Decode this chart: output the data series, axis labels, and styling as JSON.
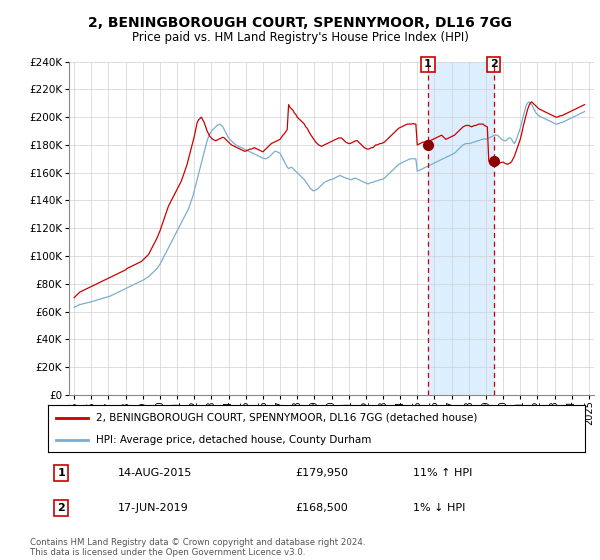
{
  "title": "2, BENINGBOROUGH COURT, SPENNYMOOR, DL16 7GG",
  "subtitle": "Price paid vs. HM Land Registry's House Price Index (HPI)",
  "legend_line1": "2, BENINGBOROUGH COURT, SPENNYMOOR, DL16 7GG (detached house)",
  "legend_line2": "HPI: Average price, detached house, County Durham",
  "annotation1_label": "1",
  "annotation1_date": "14-AUG-2015",
  "annotation1_price": "£179,950",
  "annotation1_hpi": "11% ↑ HPI",
  "annotation2_label": "2",
  "annotation2_date": "17-JUN-2019",
  "annotation2_price": "£168,500",
  "annotation2_hpi": "1% ↓ HPI",
  "footer": "Contains HM Land Registry data © Crown copyright and database right 2024.\nThis data is licensed under the Open Government Licence v3.0.",
  "red_color": "#cc0000",
  "blue_color": "#7aadcf",
  "shade_color": "#ddeeff",
  "vline1_x": 2015.62,
  "vline2_x": 2019.46,
  "sale1_price": 179950,
  "sale2_price": 168500,
  "ylim": [
    0,
    240000
  ],
  "xlim_start": 1994.7,
  "xlim_end": 2025.3,
  "hpi_months": [
    1995.0,
    1995.083,
    1995.167,
    1995.25,
    1995.333,
    1995.417,
    1995.5,
    1995.583,
    1995.667,
    1995.75,
    1995.833,
    1995.917,
    1996.0,
    1996.083,
    1996.167,
    1996.25,
    1996.333,
    1996.417,
    1996.5,
    1996.583,
    1996.667,
    1996.75,
    1996.833,
    1996.917,
    1997.0,
    1997.083,
    1997.167,
    1997.25,
    1997.333,
    1997.417,
    1997.5,
    1997.583,
    1997.667,
    1997.75,
    1997.833,
    1997.917,
    1998.0,
    1998.083,
    1998.167,
    1998.25,
    1998.333,
    1998.417,
    1998.5,
    1998.583,
    1998.667,
    1998.75,
    1998.833,
    1998.917,
    1999.0,
    1999.083,
    1999.167,
    1999.25,
    1999.333,
    1999.417,
    1999.5,
    1999.583,
    1999.667,
    1999.75,
    1999.833,
    1999.917,
    2000.0,
    2000.083,
    2000.167,
    2000.25,
    2000.333,
    2000.417,
    2000.5,
    2000.583,
    2000.667,
    2000.75,
    2000.833,
    2000.917,
    2001.0,
    2001.083,
    2001.167,
    2001.25,
    2001.333,
    2001.417,
    2001.5,
    2001.583,
    2001.667,
    2001.75,
    2001.833,
    2001.917,
    2002.0,
    2002.083,
    2002.167,
    2002.25,
    2002.333,
    2002.417,
    2002.5,
    2002.583,
    2002.667,
    2002.75,
    2002.833,
    2002.917,
    2003.0,
    2003.083,
    2003.167,
    2003.25,
    2003.333,
    2003.417,
    2003.5,
    2003.583,
    2003.667,
    2003.75,
    2003.833,
    2003.917,
    2004.0,
    2004.083,
    2004.167,
    2004.25,
    2004.333,
    2004.417,
    2004.5,
    2004.583,
    2004.667,
    2004.75,
    2004.833,
    2004.917,
    2005.0,
    2005.083,
    2005.167,
    2005.25,
    2005.333,
    2005.417,
    2005.5,
    2005.583,
    2005.667,
    2005.75,
    2005.833,
    2005.917,
    2006.0,
    2006.083,
    2006.167,
    2006.25,
    2006.333,
    2006.417,
    2006.5,
    2006.583,
    2006.667,
    2006.75,
    2006.833,
    2006.917,
    2007.0,
    2007.083,
    2007.167,
    2007.25,
    2007.333,
    2007.417,
    2007.5,
    2007.583,
    2007.667,
    2007.75,
    2007.833,
    2007.917,
    2008.0,
    2008.083,
    2008.167,
    2008.25,
    2008.333,
    2008.417,
    2008.5,
    2008.583,
    2008.667,
    2008.75,
    2008.833,
    2008.917,
    2009.0,
    2009.083,
    2009.167,
    2009.25,
    2009.333,
    2009.417,
    2009.5,
    2009.583,
    2009.667,
    2009.75,
    2009.833,
    2009.917,
    2010.0,
    2010.083,
    2010.167,
    2010.25,
    2010.333,
    2010.417,
    2010.5,
    2010.583,
    2010.667,
    2010.75,
    2010.833,
    2010.917,
    2011.0,
    2011.083,
    2011.167,
    2011.25,
    2011.333,
    2011.417,
    2011.5,
    2011.583,
    2011.667,
    2011.75,
    2011.833,
    2011.917,
    2012.0,
    2012.083,
    2012.167,
    2012.25,
    2012.333,
    2012.417,
    2012.5,
    2012.583,
    2012.667,
    2012.75,
    2012.833,
    2012.917,
    2013.0,
    2013.083,
    2013.167,
    2013.25,
    2013.333,
    2013.417,
    2013.5,
    2013.583,
    2013.667,
    2013.75,
    2013.833,
    2013.917,
    2014.0,
    2014.083,
    2014.167,
    2014.25,
    2014.333,
    2014.417,
    2014.5,
    2014.583,
    2014.667,
    2014.75,
    2014.833,
    2014.917,
    2015.0,
    2015.083,
    2015.167,
    2015.25,
    2015.333,
    2015.417,
    2015.5,
    2015.583,
    2015.667,
    2015.75,
    2015.833,
    2015.917,
    2016.0,
    2016.083,
    2016.167,
    2016.25,
    2016.333,
    2016.417,
    2016.5,
    2016.583,
    2016.667,
    2016.75,
    2016.833,
    2016.917,
    2017.0,
    2017.083,
    2017.167,
    2017.25,
    2017.333,
    2017.417,
    2017.5,
    2017.583,
    2017.667,
    2017.75,
    2017.833,
    2017.917,
    2018.0,
    2018.083,
    2018.167,
    2018.25,
    2018.333,
    2018.417,
    2018.5,
    2018.583,
    2018.667,
    2018.75,
    2018.833,
    2018.917,
    2019.0,
    2019.083,
    2019.167,
    2019.25,
    2019.333,
    2019.417,
    2019.5,
    2019.583,
    2019.667,
    2019.75,
    2019.833,
    2019.917,
    2020.0,
    2020.083,
    2020.167,
    2020.25,
    2020.333,
    2020.417,
    2020.5,
    2020.583,
    2020.667,
    2020.75,
    2020.833,
    2020.917,
    2021.0,
    2021.083,
    2021.167,
    2021.25,
    2021.333,
    2021.417,
    2021.5,
    2021.583,
    2021.667,
    2021.75,
    2021.833,
    2021.917,
    2022.0,
    2022.083,
    2022.167,
    2022.25,
    2022.333,
    2022.417,
    2022.5,
    2022.583,
    2022.667,
    2022.75,
    2022.833,
    2022.917,
    2023.0,
    2023.083,
    2023.167,
    2023.25,
    2023.333,
    2023.417,
    2023.5,
    2023.583,
    2023.667,
    2023.75,
    2023.833,
    2023.917,
    2024.0,
    2024.083,
    2024.167,
    2024.25,
    2024.333,
    2024.417,
    2024.5,
    2024.583,
    2024.667,
    2024.75
  ],
  "hpi_values": [
    63000,
    63500,
    64000,
    64500,
    65000,
    65200,
    65500,
    65800,
    66000,
    66200,
    66500,
    66700,
    67000,
    67300,
    67600,
    68000,
    68300,
    68600,
    68900,
    69200,
    69500,
    69800,
    70100,
    70400,
    70700,
    71000,
    71500,
    72000,
    72500,
    73000,
    73500,
    74000,
    74500,
    75000,
    75500,
    76000,
    76500,
    77000,
    77500,
    78000,
    78500,
    79000,
    79500,
    80000,
    80500,
    81000,
    81500,
    82000,
    82500,
    83000,
    83800,
    84500,
    85000,
    86000,
    87000,
    88000,
    89000,
    90000,
    91000,
    92500,
    94000,
    96000,
    98000,
    100000,
    102000,
    104000,
    106000,
    108000,
    110000,
    112000,
    114000,
    116000,
    118000,
    120000,
    122000,
    124000,
    126000,
    128000,
    130000,
    132000,
    134000,
    137000,
    140000,
    143000,
    147000,
    151000,
    155000,
    159000,
    163000,
    167000,
    171000,
    175000,
    179000,
    183000,
    186000,
    188000,
    190000,
    191000,
    192000,
    193000,
    194000,
    194500,
    195000,
    194000,
    193000,
    191000,
    189000,
    187000,
    185000,
    184000,
    183000,
    182000,
    181000,
    180000,
    179500,
    179000,
    178500,
    178000,
    177500,
    177000,
    176500,
    176000,
    175500,
    175000,
    174500,
    174000,
    173500,
    173000,
    172500,
    172000,
    171500,
    171000,
    170500,
    170200,
    170000,
    170500,
    171000,
    172000,
    173000,
    174000,
    175000,
    175500,
    175000,
    174500,
    174000,
    172000,
    170000,
    168000,
    166000,
    164000,
    163000,
    163500,
    164000,
    163000,
    162000,
    161000,
    160000,
    159000,
    158000,
    157000,
    156000,
    155000,
    153500,
    152000,
    150500,
    149000,
    148000,
    147000,
    147000,
    147500,
    148000,
    149000,
    150000,
    151000,
    152000,
    153000,
    153500,
    154000,
    154500,
    155000,
    155000,
    155500,
    156000,
    156500,
    157000,
    157500,
    158000,
    157500,
    157000,
    156500,
    156000,
    156000,
    155500,
    155000,
    155000,
    155500,
    156000,
    156000,
    155500,
    155000,
    154500,
    154000,
    153500,
    153000,
    152500,
    152000,
    152000,
    152500,
    153000,
    153000,
    153500,
    154000,
    154000,
    154500,
    155000,
    155000,
    155500,
    156000,
    157000,
    158000,
    159000,
    160000,
    161000,
    162000,
    163000,
    164000,
    165000,
    166000,
    166500,
    167000,
    167500,
    168000,
    168500,
    169000,
    169500,
    170000,
    170000,
    170000,
    170000,
    170000,
    161000,
    161500,
    162000,
    162500,
    163000,
    163500,
    164000,
    164500,
    165000,
    165500,
    166000,
    166500,
    167000,
    167500,
    168000,
    168500,
    169000,
    169500,
    170000,
    170500,
    171000,
    171500,
    172000,
    172500,
    173000,
    173500,
    174000,
    175000,
    176000,
    177000,
    178000,
    179000,
    180000,
    180500,
    181000,
    181000,
    181000,
    181000,
    181500,
    182000,
    182000,
    182500,
    183000,
    183000,
    183500,
    184000,
    184000,
    184500,
    184000,
    184500,
    185000,
    185500,
    186000,
    186500,
    187000,
    187000,
    187000,
    186000,
    185000,
    184000,
    183500,
    183000,
    183000,
    184000,
    185000,
    185000,
    184000,
    182000,
    181000,
    183000,
    186000,
    189000,
    192000,
    196000,
    200000,
    204000,
    208000,
    210000,
    211000,
    210000,
    209000,
    207000,
    205000,
    203000,
    202000,
    201000,
    200500,
    200000,
    199500,
    199000,
    198500,
    198000,
    197500,
    197000,
    196500,
    196000,
    195500,
    195000,
    195000,
    195500,
    196000,
    196000,
    196500,
    197000,
    197500,
    198000,
    198500,
    199000,
    199500,
    200000,
    200500,
    201000,
    201500,
    202000,
    202500,
    203000,
    203500,
    204000
  ],
  "prop_months": [
    1995.0,
    1995.083,
    1995.167,
    1995.25,
    1995.333,
    1995.417,
    1995.5,
    1995.583,
    1995.667,
    1995.75,
    1995.833,
    1995.917,
    1996.0,
    1996.083,
    1996.167,
    1996.25,
    1996.333,
    1996.417,
    1996.5,
    1996.583,
    1996.667,
    1996.75,
    1996.833,
    1996.917,
    1997.0,
    1997.083,
    1997.167,
    1997.25,
    1997.333,
    1997.417,
    1997.5,
    1997.583,
    1997.667,
    1997.75,
    1997.833,
    1997.917,
    1998.0,
    1998.083,
    1998.167,
    1998.25,
    1998.333,
    1998.417,
    1998.5,
    1998.583,
    1998.667,
    1998.75,
    1998.833,
    1998.917,
    1999.0,
    1999.083,
    1999.167,
    1999.25,
    1999.333,
    1999.417,
    1999.5,
    1999.583,
    1999.667,
    1999.75,
    1999.833,
    1999.917,
    2000.0,
    2000.083,
    2000.167,
    2000.25,
    2000.333,
    2000.417,
    2000.5,
    2000.583,
    2000.667,
    2000.75,
    2000.833,
    2000.917,
    2001.0,
    2001.083,
    2001.167,
    2001.25,
    2001.333,
    2001.417,
    2001.5,
    2001.583,
    2001.667,
    2001.75,
    2001.833,
    2001.917,
    2002.0,
    2002.083,
    2002.167,
    2002.25,
    2002.333,
    2002.417,
    2002.5,
    2002.583,
    2002.667,
    2002.75,
    2002.833,
    2002.917,
    2003.0,
    2003.083,
    2003.167,
    2003.25,
    2003.333,
    2003.417,
    2003.5,
    2003.583,
    2003.667,
    2003.75,
    2003.833,
    2003.917,
    2004.0,
    2004.083,
    2004.167,
    2004.25,
    2004.333,
    2004.417,
    2004.5,
    2004.583,
    2004.667,
    2004.75,
    2004.833,
    2004.917,
    2005.0,
    2005.083,
    2005.167,
    2005.25,
    2005.333,
    2005.417,
    2005.5,
    2005.583,
    2005.667,
    2005.75,
    2005.833,
    2005.917,
    2006.0,
    2006.083,
    2006.167,
    2006.25,
    2006.333,
    2006.417,
    2006.5,
    2006.583,
    2006.667,
    2006.75,
    2006.833,
    2006.917,
    2007.0,
    2007.083,
    2007.167,
    2007.25,
    2007.333,
    2007.417,
    2007.5,
    2007.583,
    2007.667,
    2007.75,
    2007.833,
    2007.917,
    2008.0,
    2008.083,
    2008.167,
    2008.25,
    2008.333,
    2008.417,
    2008.5,
    2008.583,
    2008.667,
    2008.75,
    2008.833,
    2008.917,
    2009.0,
    2009.083,
    2009.167,
    2009.25,
    2009.333,
    2009.417,
    2009.5,
    2009.583,
    2009.667,
    2009.75,
    2009.833,
    2009.917,
    2010.0,
    2010.083,
    2010.167,
    2010.25,
    2010.333,
    2010.417,
    2010.5,
    2010.583,
    2010.667,
    2010.75,
    2010.833,
    2010.917,
    2011.0,
    2011.083,
    2011.167,
    2011.25,
    2011.333,
    2011.417,
    2011.5,
    2011.583,
    2011.667,
    2011.75,
    2011.833,
    2011.917,
    2012.0,
    2012.083,
    2012.167,
    2012.25,
    2012.333,
    2012.417,
    2012.5,
    2012.583,
    2012.667,
    2012.75,
    2012.833,
    2012.917,
    2013.0,
    2013.083,
    2013.167,
    2013.25,
    2013.333,
    2013.417,
    2013.5,
    2013.583,
    2013.667,
    2013.75,
    2013.833,
    2013.917,
    2014.0,
    2014.083,
    2014.167,
    2014.25,
    2014.333,
    2014.417,
    2014.5,
    2014.583,
    2014.667,
    2014.75,
    2014.833,
    2014.917,
    2015.0,
    2015.083,
    2015.167,
    2015.25,
    2015.333,
    2015.417,
    2015.5,
    2015.583,
    2015.667,
    2015.75,
    2015.833,
    2015.917,
    2016.0,
    2016.083,
    2016.167,
    2016.25,
    2016.333,
    2016.417,
    2016.5,
    2016.583,
    2016.667,
    2016.75,
    2016.833,
    2016.917,
    2017.0,
    2017.083,
    2017.167,
    2017.25,
    2017.333,
    2017.417,
    2017.5,
    2017.583,
    2017.667,
    2017.75,
    2017.833,
    2017.917,
    2018.0,
    2018.083,
    2018.167,
    2018.25,
    2018.333,
    2018.417,
    2018.5,
    2018.583,
    2018.667,
    2018.75,
    2018.833,
    2018.917,
    2019.0,
    2019.083,
    2019.167,
    2019.25,
    2019.333,
    2019.417,
    2019.5,
    2019.583,
    2019.667,
    2019.75,
    2019.833,
    2019.917,
    2020.0,
    2020.083,
    2020.167,
    2020.25,
    2020.333,
    2020.417,
    2020.5,
    2020.583,
    2020.667,
    2020.75,
    2020.833,
    2020.917,
    2021.0,
    2021.083,
    2021.167,
    2021.25,
    2021.333,
    2021.417,
    2021.5,
    2021.583,
    2021.667,
    2021.75,
    2021.833,
    2021.917,
    2022.0,
    2022.083,
    2022.167,
    2022.25,
    2022.333,
    2022.417,
    2022.5,
    2022.583,
    2022.667,
    2022.75,
    2022.833,
    2022.917,
    2023.0,
    2023.083,
    2023.167,
    2023.25,
    2023.333,
    2023.417,
    2023.5,
    2023.583,
    2023.667,
    2023.75,
    2023.833,
    2023.917,
    2024.0,
    2024.083,
    2024.167,
    2024.25,
    2024.333,
    2024.417,
    2024.5,
    2024.583,
    2024.667,
    2024.75
  ],
  "prop_values": [
    70000,
    71000,
    72000,
    73000,
    74000,
    74500,
    75000,
    75500,
    76000,
    76500,
    77000,
    77500,
    78000,
    78500,
    79000,
    79500,
    80000,
    80500,
    81000,
    81500,
    82000,
    82500,
    83000,
    83500,
    84000,
    84500,
    85000,
    85500,
    86000,
    86500,
    87000,
    87500,
    88000,
    88500,
    89000,
    89500,
    90000,
    91000,
    91500,
    92000,
    92500,
    93000,
    93500,
    94000,
    94500,
    95000,
    95500,
    96000,
    97000,
    98000,
    99000,
    100000,
    101000,
    103000,
    105000,
    107000,
    109000,
    111000,
    113000,
    115500,
    118000,
    121000,
    124000,
    127000,
    130000,
    133000,
    136000,
    138000,
    140000,
    142000,
    144000,
    146000,
    148000,
    150000,
    152000,
    154000,
    157000,
    160000,
    163000,
    166000,
    170000,
    174000,
    178000,
    182000,
    186000,
    191000,
    196000,
    198000,
    199000,
    200000,
    198000,
    196000,
    193000,
    190000,
    188000,
    186000,
    185000,
    184000,
    183500,
    183000,
    183500,
    184000,
    184500,
    185000,
    185500,
    185000,
    184000,
    183000,
    182000,
    181000,
    180000,
    179500,
    179000,
    178500,
    178000,
    177500,
    177000,
    176500,
    176000,
    175500,
    175500,
    176000,
    176500,
    177000,
    177000,
    177500,
    178000,
    177500,
    177000,
    176500,
    176000,
    175500,
    175000,
    176000,
    177000,
    178000,
    179000,
    180000,
    181000,
    181500,
    182000,
    182500,
    183000,
    183500,
    184000,
    185500,
    187000,
    188000,
    189500,
    191000,
    209000,
    207000,
    206000,
    205000,
    203000,
    202000,
    200000,
    199000,
    198000,
    197000,
    196000,
    195000,
    193000,
    192000,
    190000,
    188000,
    186500,
    185000,
    183500,
    182000,
    181000,
    180000,
    179500,
    179000,
    179500,
    180000,
    180500,
    181000,
    181500,
    182000,
    182500,
    183000,
    183500,
    184000,
    184500,
    185000,
    185000,
    185000,
    184000,
    183000,
    182000,
    181500,
    181000,
    181000,
    181500,
    182000,
    182500,
    183000,
    183000,
    182000,
    181000,
    180000,
    179000,
    178000,
    177500,
    177000,
    177000,
    177500,
    178000,
    178000,
    179000,
    180000,
    180000,
    180500,
    181000,
    181000,
    181500,
    182000,
    183000,
    184000,
    185000,
    186000,
    187000,
    188000,
    189000,
    190000,
    191000,
    192000,
    192500,
    193000,
    193500,
    194000,
    194500,
    195000,
    195000,
    195000,
    195000,
    195500,
    195000,
    195000,
    179950,
    180500,
    181000,
    181500,
    182000,
    182000,
    182500,
    183000,
    183500,
    183000,
    183500,
    184000,
    184500,
    185000,
    185500,
    186000,
    186500,
    187000,
    186000,
    185000,
    184000,
    184500,
    185000,
    185500,
    186000,
    186500,
    187000,
    188000,
    189000,
    190000,
    191000,
    192000,
    193000,
    193500,
    194000,
    194000,
    194000,
    193500,
    193000,
    193500,
    194000,
    194000,
    194500,
    195000,
    195000,
    195000,
    195000,
    194000,
    193500,
    193000,
    168500,
    166000,
    165500,
    165000,
    165000,
    165500,
    166000,
    166500,
    167000,
    167500,
    167500,
    167000,
    166500,
    166000,
    166500,
    167000,
    168000,
    170000,
    172000,
    175000,
    178000,
    181000,
    184000,
    188000,
    193000,
    197000,
    201000,
    205000,
    208000,
    210000,
    211000,
    210000,
    209000,
    208000,
    207000,
    206000,
    205500,
    205000,
    204500,
    204000,
    203500,
    203000,
    202500,
    202000,
    201500,
    201000,
    200500,
    200000,
    200000,
    200500,
    201000,
    201000,
    201500,
    202000,
    202500,
    203000,
    203500,
    204000,
    204500,
    205000,
    205500,
    206000,
    206500,
    207000,
    207500,
    208000,
    208500,
    209000
  ]
}
